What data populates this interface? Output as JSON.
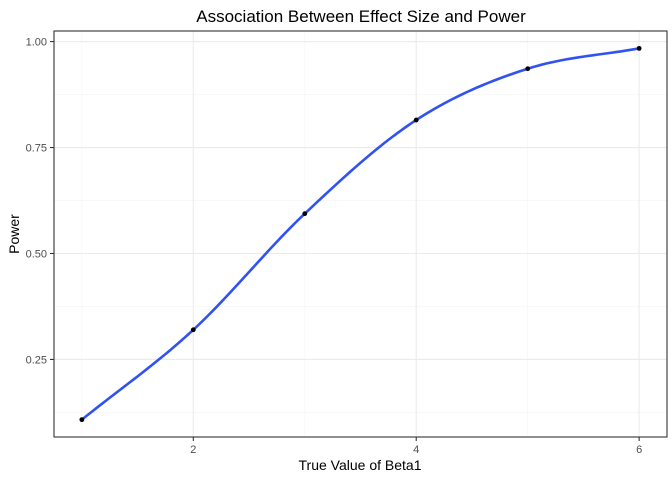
{
  "chart_data": {
    "type": "line",
    "title": "Association Between Effect Size and Power",
    "xlabel": "True Value of Beta1",
    "ylabel": "Power",
    "x_ticks": [
      2,
      4,
      6
    ],
    "y_ticks": [
      0.25,
      0.5,
      0.75,
      1.0
    ],
    "x_tick_labels": [
      "2",
      "4",
      "6"
    ],
    "y_tick_labels": [
      "0.25",
      "0.50",
      "0.75",
      "1.00"
    ],
    "xlim": [
      0.75,
      6.25
    ],
    "ylim": [
      0.067,
      1.025
    ],
    "grid": true,
    "legend": "none",
    "series": [
      {
        "x": [
          1,
          2,
          3,
          4,
          5,
          6
        ],
        "values": [
          0.108,
          0.32,
          0.594,
          0.815,
          0.936,
          0.984
        ],
        "color": "#3152f2",
        "point_color": "#000000"
      }
    ]
  }
}
